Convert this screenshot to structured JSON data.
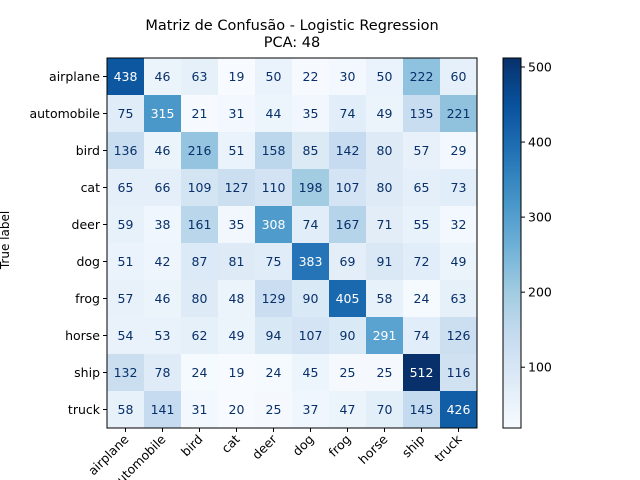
{
  "chart_data": {
    "type": "heatmap",
    "title": "Matriz de Confusão - Logistic Regression",
    "subtitle": "PCA: 48",
    "ylabel": "True label",
    "xlabel": "",
    "categories": [
      "airplane",
      "automobile",
      "bird",
      "cat",
      "deer",
      "dog",
      "frog",
      "horse",
      "ship",
      "truck"
    ],
    "matrix": [
      [
        438,
        46,
        63,
        19,
        50,
        22,
        30,
        50,
        222,
        60
      ],
      [
        75,
        315,
        21,
        31,
        44,
        35,
        74,
        49,
        135,
        221
      ],
      [
        136,
        46,
        216,
        51,
        158,
        85,
        142,
        80,
        57,
        29
      ],
      [
        65,
        66,
        109,
        127,
        110,
        198,
        107,
        80,
        65,
        73
      ],
      [
        59,
        38,
        161,
        35,
        308,
        74,
        167,
        71,
        55,
        32
      ],
      [
        51,
        42,
        87,
        81,
        75,
        383,
        69,
        91,
        72,
        49
      ],
      [
        57,
        46,
        80,
        48,
        129,
        90,
        405,
        58,
        24,
        63
      ],
      [
        54,
        53,
        62,
        49,
        94,
        107,
        90,
        291,
        74,
        126
      ],
      [
        132,
        78,
        24,
        19,
        24,
        45,
        25,
        25,
        512,
        116
      ],
      [
        58,
        141,
        31,
        20,
        25,
        37,
        47,
        70,
        145,
        426
      ]
    ],
    "colormap": "Blues",
    "colorbar": {
      "range": [
        19,
        512
      ],
      "ticks": [
        100,
        200,
        300,
        400,
        500
      ]
    },
    "grid": false
  }
}
